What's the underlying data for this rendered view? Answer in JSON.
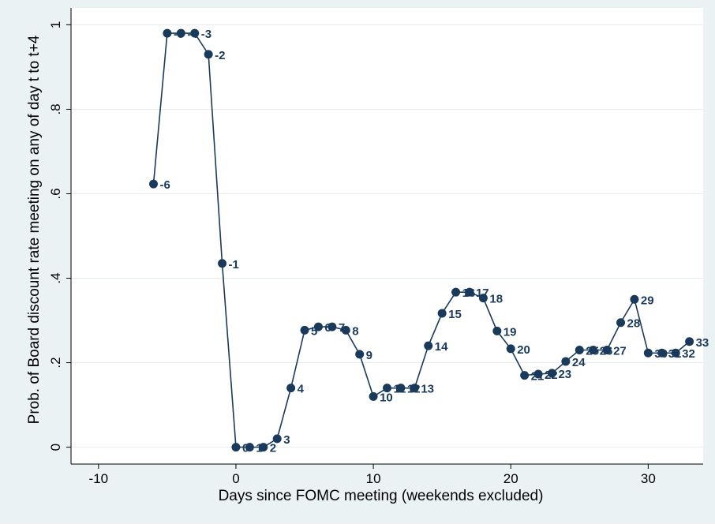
{
  "chart_data": {
    "type": "line",
    "title": "",
    "xlabel": "Days since FOMC meeting (weekends excluded)",
    "ylabel": "Prob. of Board discount rate meeting on any of day t to t+4",
    "xlim": [
      -12,
      34
    ],
    "ylim": [
      -0.04,
      1.04
    ],
    "xticks": [
      -10,
      0,
      10,
      20,
      30
    ],
    "xtick_labels": [
      "-10",
      "0",
      "10",
      "20",
      "30"
    ],
    "yticks": [
      0,
      0.2,
      0.4,
      0.6,
      0.8,
      1
    ],
    "ytick_labels": [
      "0",
      ".2",
      ".4",
      ".6",
      ".8",
      "1"
    ],
    "grid": true,
    "legend": "none",
    "colors": {
      "line": "#1a3a5c",
      "marker": "#1a3a5c",
      "plot_bg": "#ffffff",
      "outer_bg": "#eaf2f3",
      "grid": "#e3ecee"
    },
    "points": [
      {
        "x": -6,
        "y": 0.623,
        "label": "-6"
      },
      {
        "x": -5,
        "y": 0.98,
        "label": "-5"
      },
      {
        "x": -4,
        "y": 0.98,
        "label": "-4"
      },
      {
        "x": -3,
        "y": 0.98,
        "label": "-3"
      },
      {
        "x": -2,
        "y": 0.93,
        "label": "-2"
      },
      {
        "x": -1,
        "y": 0.435,
        "label": "-1"
      },
      {
        "x": 0,
        "y": 0.0,
        "label": "0"
      },
      {
        "x": 1,
        "y": 0.0,
        "label": "1"
      },
      {
        "x": 2,
        "y": 0.0,
        "label": "2"
      },
      {
        "x": 3,
        "y": 0.02,
        "label": "3"
      },
      {
        "x": 4,
        "y": 0.14,
        "label": "4"
      },
      {
        "x": 5,
        "y": 0.277,
        "label": "5"
      },
      {
        "x": 6,
        "y": 0.285,
        "label": "6"
      },
      {
        "x": 7,
        "y": 0.285,
        "label": "7"
      },
      {
        "x": 8,
        "y": 0.277,
        "label": "8"
      },
      {
        "x": 9,
        "y": 0.22,
        "label": "9"
      },
      {
        "x": 10,
        "y": 0.12,
        "label": "10"
      },
      {
        "x": 11,
        "y": 0.14,
        "label": "11"
      },
      {
        "x": 12,
        "y": 0.14,
        "label": "12"
      },
      {
        "x": 13,
        "y": 0.14,
        "label": "13"
      },
      {
        "x": 14,
        "y": 0.24,
        "label": "14"
      },
      {
        "x": 15,
        "y": 0.317,
        "label": "15"
      },
      {
        "x": 16,
        "y": 0.367,
        "label": "16"
      },
      {
        "x": 17,
        "y": 0.367,
        "label": "17"
      },
      {
        "x": 18,
        "y": 0.353,
        "label": "18"
      },
      {
        "x": 19,
        "y": 0.275,
        "label": "19"
      },
      {
        "x": 20,
        "y": 0.233,
        "label": "20"
      },
      {
        "x": 21,
        "y": 0.17,
        "label": "21"
      },
      {
        "x": 22,
        "y": 0.173,
        "label": "22"
      },
      {
        "x": 23,
        "y": 0.175,
        "label": "23"
      },
      {
        "x": 24,
        "y": 0.203,
        "label": "24"
      },
      {
        "x": 25,
        "y": 0.23,
        "label": "25"
      },
      {
        "x": 26,
        "y": 0.23,
        "label": "26"
      },
      {
        "x": 27,
        "y": 0.23,
        "label": "27"
      },
      {
        "x": 28,
        "y": 0.295,
        "label": "28"
      },
      {
        "x": 29,
        "y": 0.35,
        "label": "29"
      },
      {
        "x": 30,
        "y": 0.223,
        "label": "30"
      },
      {
        "x": 31,
        "y": 0.223,
        "label": "31"
      },
      {
        "x": 32,
        "y": 0.223,
        "label": "32"
      },
      {
        "x": 33,
        "y": 0.25,
        "label": "33"
      }
    ]
  }
}
